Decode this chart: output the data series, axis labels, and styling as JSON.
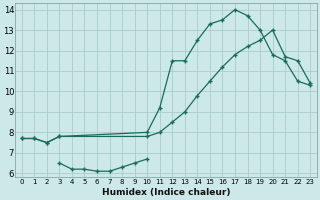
{
  "xlabel": "Humidex (Indice chaleur)",
  "bg_color": "#cce8e8",
  "grid_color": "#aacccc",
  "line_color": "#1a6b5a",
  "xlim": [
    -0.5,
    23.5
  ],
  "ylim": [
    5.8,
    14.3
  ],
  "xticks": [
    0,
    1,
    2,
    3,
    4,
    5,
    6,
    7,
    8,
    9,
    10,
    11,
    12,
    13,
    14,
    15,
    16,
    17,
    18,
    19,
    20,
    21,
    22,
    23
  ],
  "yticks": [
    6,
    7,
    8,
    9,
    10,
    11,
    12,
    13,
    14
  ],
  "curve1_x": [
    0,
    1,
    2,
    3,
    10,
    11,
    12,
    13,
    14,
    15,
    16,
    17,
    18,
    19,
    20,
    21,
    22,
    23
  ],
  "curve1_y": [
    7.7,
    7.7,
    7.5,
    7.8,
    8.0,
    9.2,
    11.5,
    11.5,
    12.5,
    13.3,
    13.5,
    14.0,
    13.7,
    13.0,
    11.8,
    11.5,
    10.5,
    10.3
  ],
  "curve2_x": [
    0,
    1,
    2,
    3,
    10,
    11,
    12,
    13,
    14,
    15,
    16,
    17,
    18,
    19,
    20,
    21,
    22,
    23
  ],
  "curve2_y": [
    7.7,
    7.7,
    7.5,
    7.8,
    7.8,
    8.0,
    8.5,
    9.0,
    9.8,
    10.5,
    11.2,
    11.8,
    12.2,
    12.5,
    13.0,
    11.7,
    11.5,
    10.4
  ],
  "curve3_x": [
    3,
    4,
    5,
    6,
    7,
    8,
    9,
    10
  ],
  "curve3_y": [
    6.5,
    6.2,
    6.2,
    6.1,
    6.1,
    6.3,
    6.5,
    6.7
  ]
}
